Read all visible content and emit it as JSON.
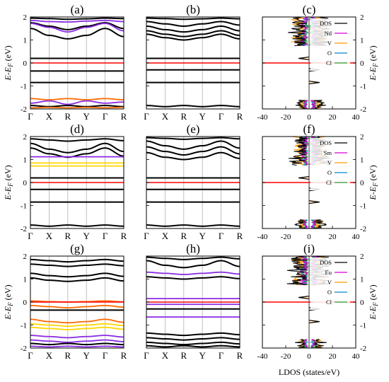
{
  "figure": {
    "ylabel": "E-E_F (eV)",
    "ylabel_main": "E-E",
    "ylabel_sub": "F",
    "ylabel_unit": " (eV)",
    "xlabel": "LDOS (states/eV)",
    "colors": {
      "bands": "#000000",
      "fermi": "#ff0000",
      "grid": "#b0b0b0",
      "purple": "#8a2be2",
      "orange": "#ff6a00",
      "gold": "#ffd700",
      "dos": "#000000",
      "rare_earth": "#d400d4",
      "V": "#ff9900",
      "O": "#0088cc",
      "Cl": "#2ca02c"
    }
  },
  "chart_data": [
    {
      "type": "line",
      "panel": "(a)",
      "kind": "bands",
      "kpath": [
        "Γ",
        "X",
        "R",
        "Y",
        "Γ",
        "R"
      ],
      "ylim": [
        -2,
        2
      ],
      "yticks": [
        -2,
        -1,
        0,
        1,
        2
      ],
      "fermi": 0,
      "bands": [
        {
          "color": "black",
          "values": [
            1.95,
            1.93,
            1.9,
            1.92,
            1.95,
            1.93
          ]
        },
        {
          "color": "purple",
          "values": [
            1.85,
            1.8,
            1.78,
            1.82,
            1.85,
            1.8
          ]
        },
        {
          "color": "black",
          "values": [
            1.75,
            1.6,
            1.45,
            1.6,
            1.75,
            1.5
          ]
        },
        {
          "color": "purple",
          "values": [
            1.72,
            1.55,
            1.35,
            1.55,
            1.72,
            1.4
          ]
        },
        {
          "color": "black",
          "values": [
            1.5,
            1.2,
            1.05,
            1.2,
            1.5,
            1.15
          ]
        },
        {
          "color": "black",
          "values": [
            0.2,
            0.2,
            0.2,
            0.2,
            0.2,
            0.2
          ]
        },
        {
          "color": "black",
          "values": [
            -0.35,
            -0.35,
            -0.35,
            -0.35,
            -0.35,
            -0.35
          ]
        },
        {
          "color": "black",
          "values": [
            -0.85,
            -0.85,
            -0.85,
            -0.85,
            -0.85,
            -0.85
          ]
        },
        {
          "color": "orange",
          "values": [
            -1.55,
            -1.6,
            -1.55,
            -1.6,
            -1.55,
            -1.6
          ]
        },
        {
          "color": "purple",
          "values": [
            -1.75,
            -1.65,
            -1.8,
            -1.65,
            -1.75,
            -1.7
          ]
        },
        {
          "color": "black",
          "values": [
            -1.85,
            -1.9,
            -1.85,
            -1.9,
            -1.85,
            -1.9
          ]
        },
        {
          "color": "orange",
          "values": [
            -1.95,
            -1.93,
            -1.95,
            -1.93,
            -1.95,
            -1.93
          ]
        }
      ]
    },
    {
      "type": "line",
      "panel": "(b)",
      "kind": "bands",
      "kpath": [
        "Γ",
        "X",
        "R",
        "Y",
        "Γ",
        "R"
      ],
      "ylim": [
        -2,
        2
      ],
      "yticks": [
        -2,
        -1,
        0,
        1,
        2
      ],
      "fermi": 0,
      "bands": [
        {
          "color": "black",
          "values": [
            1.95,
            1.93,
            1.9,
            1.92,
            1.95,
            1.92
          ]
        },
        {
          "color": "black",
          "values": [
            1.8,
            1.7,
            1.6,
            1.7,
            1.8,
            1.65
          ]
        },
        {
          "color": "black",
          "values": [
            1.6,
            1.45,
            1.35,
            1.45,
            1.6,
            1.4
          ]
        },
        {
          "color": "black",
          "values": [
            1.4,
            1.25,
            1.15,
            1.25,
            1.4,
            1.2
          ]
        },
        {
          "color": "black",
          "values": [
            1.25,
            1.1,
            1.0,
            1.1,
            1.25,
            1.05
          ]
        },
        {
          "color": "black",
          "values": [
            0.2,
            0.2,
            0.2,
            0.2,
            0.2,
            0.2
          ]
        },
        {
          "color": "black",
          "values": [
            -0.3,
            -0.3,
            -0.3,
            -0.3,
            -0.3,
            -0.3
          ]
        },
        {
          "color": "black",
          "values": [
            -0.85,
            -0.85,
            -0.85,
            -0.85,
            -0.85,
            -0.85
          ]
        },
        {
          "color": "black",
          "values": [
            -1.85,
            -1.9,
            -1.85,
            -1.9,
            -1.85,
            -1.9
          ]
        }
      ]
    },
    {
      "type": "line",
      "panel": "(c)",
      "kind": "dos",
      "xlim": [
        -40,
        40
      ],
      "xticks": [
        -40,
        -20,
        0,
        20,
        40
      ],
      "ylim": [
        -2,
        2
      ],
      "yticks": [
        -2,
        -1,
        0,
        1,
        2
      ],
      "fermi": 0,
      "legend": [
        "DOS",
        "Nd",
        "V",
        "O",
        "Cl"
      ],
      "legend_placement": "top-right"
    },
    {
      "type": "line",
      "panel": "(d)",
      "kind": "bands",
      "kpath": [
        "Γ",
        "X",
        "R",
        "Y",
        "Γ",
        "R"
      ],
      "ylim": [
        -2,
        2
      ],
      "yticks": [
        -2,
        -1,
        0,
        1,
        2
      ],
      "fermi": 0,
      "bands": [
        {
          "color": "black",
          "values": [
            1.9,
            1.85,
            1.8,
            1.85,
            1.9,
            1.82
          ]
        },
        {
          "color": "black",
          "values": [
            1.7,
            1.45,
            1.3,
            1.45,
            1.7,
            1.35
          ]
        },
        {
          "color": "black",
          "values": [
            1.5,
            1.25,
            1.1,
            1.25,
            1.5,
            1.15
          ]
        },
        {
          "color": "purple",
          "values": [
            1.12,
            1.12,
            1.12,
            1.12,
            1.12,
            1.12
          ]
        },
        {
          "color": "gold",
          "values": [
            0.85,
            0.85,
            0.85,
            0.85,
            0.85,
            0.85
          ]
        },
        {
          "color": "gold",
          "values": [
            0.72,
            0.72,
            0.72,
            0.72,
            0.72,
            0.72
          ]
        },
        {
          "color": "black",
          "values": [
            0.2,
            0.2,
            0.2,
            0.2,
            0.2,
            0.2
          ]
        },
        {
          "color": "black",
          "values": [
            -0.3,
            -0.3,
            -0.3,
            -0.3,
            -0.3,
            -0.3
          ]
        },
        {
          "color": "black",
          "values": [
            -0.85,
            -0.85,
            -0.85,
            -0.85,
            -0.85,
            -0.85
          ]
        },
        {
          "color": "black",
          "values": [
            -1.85,
            -1.9,
            -1.85,
            -1.9,
            -1.85,
            -1.9
          ]
        }
      ]
    },
    {
      "type": "line",
      "panel": "(e)",
      "kind": "bands",
      "kpath": [
        "Γ",
        "X",
        "R",
        "Y",
        "Γ",
        "R"
      ],
      "ylim": [
        -2,
        2
      ],
      "yticks": [
        -2,
        -1,
        0,
        1,
        2
      ],
      "fermi": 0,
      "bands": [
        {
          "color": "black",
          "values": [
            1.95,
            1.92,
            1.88,
            1.92,
            1.95,
            1.9
          ]
        },
        {
          "color": "black",
          "values": [
            1.8,
            1.6,
            1.45,
            1.6,
            1.8,
            1.5
          ]
        },
        {
          "color": "black",
          "values": [
            1.55,
            1.35,
            1.2,
            1.35,
            1.55,
            1.25
          ]
        },
        {
          "color": "black",
          "values": [
            1.3,
            1.1,
            1.0,
            1.1,
            1.3,
            1.05
          ]
        },
        {
          "color": "black",
          "values": [
            0.2,
            0.2,
            0.2,
            0.2,
            0.2,
            0.2
          ]
        },
        {
          "color": "black",
          "values": [
            -0.3,
            -0.3,
            -0.3,
            -0.3,
            -0.3,
            -0.3
          ]
        },
        {
          "color": "black",
          "values": [
            -0.85,
            -0.85,
            -0.85,
            -0.85,
            -0.85,
            -0.85
          ]
        },
        {
          "color": "black",
          "values": [
            -1.85,
            -1.9,
            -1.85,
            -1.9,
            -1.85,
            -1.9
          ]
        }
      ]
    },
    {
      "type": "line",
      "panel": "(f)",
      "kind": "dos",
      "xlim": [
        -40,
        40
      ],
      "xticks": [
        -40,
        -20,
        0,
        20,
        40
      ],
      "ylim": [
        -2,
        2
      ],
      "yticks": [
        -2,
        -1,
        0,
        1,
        2
      ],
      "fermi": 0,
      "legend": [
        "DOS",
        "Sm",
        "V",
        "O",
        "Cl"
      ],
      "legend_placement": "top-right"
    },
    {
      "type": "line",
      "panel": "(g)",
      "kind": "bands",
      "kpath": [
        "Γ",
        "X",
        "R",
        "Y",
        "Γ",
        "R"
      ],
      "ylim": [
        -2,
        2
      ],
      "yticks": [
        -2,
        -1,
        0,
        1,
        2
      ],
      "fermi": 0,
      "bands": [
        {
          "color": "black",
          "values": [
            1.85,
            1.8,
            1.75,
            1.8,
            1.85,
            1.78
          ]
        },
        {
          "color": "black",
          "values": [
            1.65,
            1.6,
            1.55,
            1.6,
            1.65,
            1.58
          ]
        },
        {
          "color": "black",
          "values": [
            1.25,
            1.15,
            1.1,
            1.15,
            1.25,
            1.12
          ]
        },
        {
          "color": "black",
          "values": [
            1.05,
            0.95,
            0.9,
            0.95,
            1.05,
            0.92
          ]
        },
        {
          "color": "orange",
          "values": [
            0.05,
            0.02,
            0.0,
            0.02,
            0.05,
            0.01
          ]
        },
        {
          "color": "orange",
          "values": [
            -0.15,
            -0.2,
            -0.25,
            -0.2,
            -0.15,
            -0.22
          ]
        },
        {
          "color": "black",
          "values": [
            -0.35,
            -0.35,
            -0.35,
            -0.35,
            -0.35,
            -0.35
          ]
        },
        {
          "color": "orange",
          "values": [
            -0.75,
            -0.85,
            -0.9,
            -0.85,
            -0.75,
            -0.88
          ]
        },
        {
          "color": "gold",
          "values": [
            -0.95,
            -1.0,
            -1.05,
            -1.0,
            -0.95,
            -1.02
          ]
        },
        {
          "color": "gold",
          "values": [
            -1.1,
            -1.15,
            -1.2,
            -1.15,
            -1.1,
            -1.18
          ]
        },
        {
          "color": "purple",
          "values": [
            -1.45,
            -1.5,
            -1.55,
            -1.5,
            -1.45,
            -1.52
          ]
        },
        {
          "color": "purple",
          "values": [
            -1.65,
            -1.7,
            -1.75,
            -1.7,
            -1.65,
            -1.72
          ]
        },
        {
          "color": "black",
          "values": [
            -1.8,
            -1.85,
            -1.8,
            -1.85,
            -1.8,
            -1.85
          ]
        },
        {
          "color": "purple",
          "values": [
            -1.92,
            -1.95,
            -1.92,
            -1.95,
            -1.92,
            -1.95
          ]
        }
      ]
    },
    {
      "type": "line",
      "panel": "(h)",
      "kind": "bands",
      "kpath": [
        "Γ",
        "X",
        "R",
        "Y",
        "Γ",
        "R"
      ],
      "ylim": [
        -2,
        2
      ],
      "yticks": [
        -2,
        -1,
        0,
        1,
        2
      ],
      "fermi": 0,
      "bands": [
        {
          "color": "black",
          "values": [
            1.95,
            1.9,
            1.85,
            1.9,
            1.95,
            1.88
          ]
        },
        {
          "color": "black",
          "values": [
            1.8,
            1.6,
            1.5,
            1.6,
            1.8,
            1.55
          ]
        },
        {
          "color": "purple",
          "values": [
            1.3,
            1.25,
            1.2,
            1.25,
            1.3,
            1.22
          ]
        },
        {
          "color": "black",
          "values": [
            1.1,
            1.05,
            1.0,
            1.05,
            1.1,
            1.02
          ]
        },
        {
          "color": "purple",
          "values": [
            0.15,
            0.15,
            0.15,
            0.15,
            0.15,
            0.15
          ]
        },
        {
          "color": "purple",
          "values": [
            -0.1,
            -0.1,
            -0.1,
            -0.1,
            -0.1,
            -0.1
          ]
        },
        {
          "color": "black",
          "values": [
            -0.3,
            -0.3,
            -0.3,
            -0.3,
            -0.3,
            -0.3
          ]
        },
        {
          "color": "purple",
          "values": [
            -0.65,
            -0.65,
            -0.65,
            -0.65,
            -0.65,
            -0.65
          ]
        },
        {
          "color": "black",
          "values": [
            -1.35,
            -1.4,
            -1.45,
            -1.4,
            -1.35,
            -1.42
          ]
        },
        {
          "color": "black",
          "values": [
            -1.55,
            -1.6,
            -1.65,
            -1.6,
            -1.55,
            -1.62
          ]
        },
        {
          "color": "black",
          "values": [
            -1.75,
            -1.8,
            -1.85,
            -1.8,
            -1.75,
            -1.82
          ]
        },
        {
          "color": "black",
          "values": [
            -1.9,
            -1.95,
            -1.9,
            -1.95,
            -1.9,
            -1.95
          ]
        }
      ]
    },
    {
      "type": "line",
      "panel": "(i)",
      "kind": "dos",
      "xlim": [
        -40,
        40
      ],
      "xticks": [
        -40,
        -20,
        0,
        20,
        40
      ],
      "ylim": [
        -2,
        2
      ],
      "yticks": [
        -2,
        -1,
        0,
        1,
        2
      ],
      "fermi": 0,
      "legend": [
        "DOS",
        "Eu",
        "V",
        "O",
        "Cl"
      ],
      "legend_placement": "top-right"
    }
  ]
}
